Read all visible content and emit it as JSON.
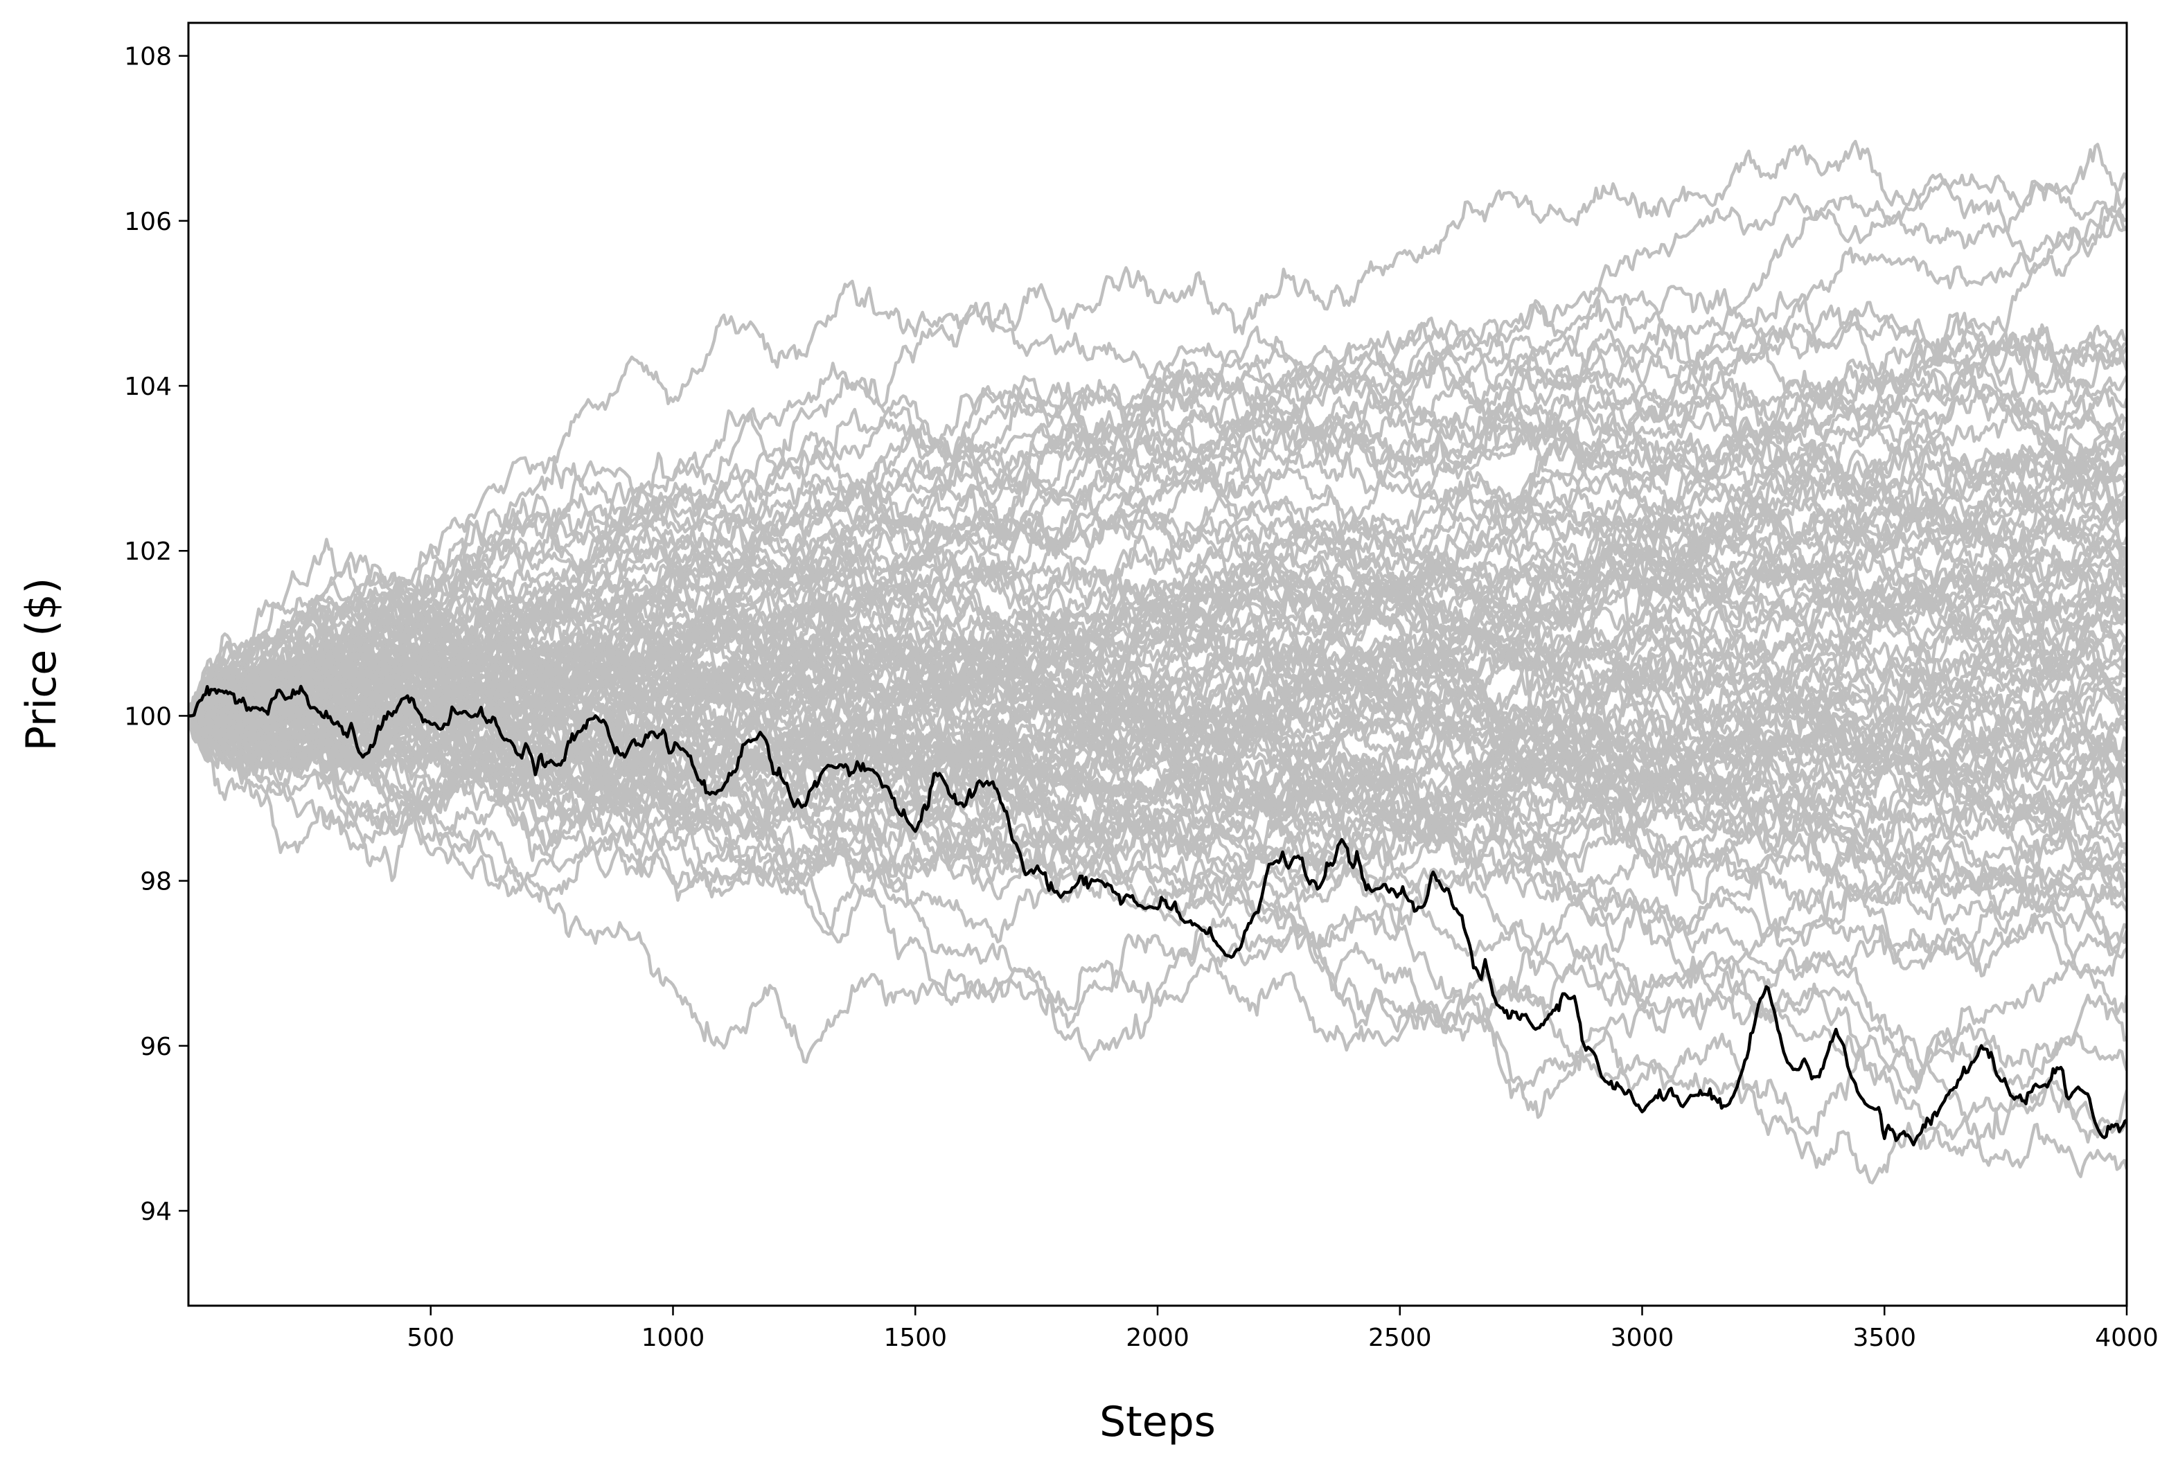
{
  "chart_data": {
    "type": "line",
    "title": "",
    "xlabel": "Steps",
    "ylabel": "Price ($)",
    "xlim": [
      0,
      4000
    ],
    "ylim": [
      92.85,
      108.4
    ],
    "x_ticks": [
      500,
      1000,
      1500,
      2000,
      2500,
      3000,
      3500,
      4000
    ],
    "y_ticks": [
      94,
      96,
      98,
      100,
      102,
      104,
      106,
      108
    ],
    "grid": false,
    "legend": "none",
    "background_paths": {
      "color": "#bfbfbf",
      "count": 100,
      "start_value": 100,
      "steps": 4000,
      "end_range": [
        93.3,
        108.1
      ]
    },
    "highlight_series": {
      "color": "#000000",
      "points": [
        [
          0,
          100.0
        ],
        [
          70,
          100.3
        ],
        [
          140,
          100.1
        ],
        [
          200,
          100.2
        ],
        [
          260,
          100.1
        ],
        [
          300,
          99.9
        ],
        [
          360,
          99.5
        ],
        [
          440,
          100.2
        ],
        [
          500,
          99.9
        ],
        [
          580,
          100.0
        ],
        [
          660,
          99.7
        ],
        [
          760,
          99.4
        ],
        [
          840,
          100.0
        ],
        [
          900,
          99.5
        ],
        [
          960,
          99.8
        ],
        [
          1020,
          99.6
        ],
        [
          1100,
          99.1
        ],
        [
          1180,
          99.8
        ],
        [
          1250,
          98.9
        ],
        [
          1320,
          99.4
        ],
        [
          1420,
          99.3
        ],
        [
          1500,
          98.6
        ],
        [
          1550,
          99.3
        ],
        [
          1600,
          98.9
        ],
        [
          1660,
          99.2
        ],
        [
          1700,
          98.5
        ],
        [
          1760,
          98.1
        ],
        [
          1800,
          97.8
        ],
        [
          1880,
          98.0
        ],
        [
          1960,
          97.7
        ],
        [
          2060,
          97.5
        ],
        [
          2140,
          97.1
        ],
        [
          2200,
          97.6
        ],
        [
          2230,
          98.2
        ],
        [
          2290,
          98.3
        ],
        [
          2330,
          97.9
        ],
        [
          2380,
          98.5
        ],
        [
          2450,
          97.9
        ],
        [
          2550,
          97.7
        ],
        [
          2580,
          98.0
        ],
        [
          2640,
          97.3
        ],
        [
          2700,
          96.5
        ],
        [
          2780,
          96.2
        ],
        [
          2860,
          96.6
        ],
        [
          2920,
          95.6
        ],
        [
          3000,
          95.2
        ],
        [
          3100,
          95.4
        ],
        [
          3180,
          95.3
        ],
        [
          3240,
          96.5
        ],
        [
          3260,
          96.7
        ],
        [
          3300,
          95.8
        ],
        [
          3350,
          95.6
        ],
        [
          3400,
          96.2
        ],
        [
          3460,
          95.3
        ],
        [
          3560,
          94.8
        ],
        [
          3620,
          95.3
        ],
        [
          3700,
          96.0
        ],
        [
          3760,
          95.4
        ],
        [
          3820,
          95.5
        ],
        [
          3900,
          95.5
        ],
        [
          3950,
          94.9
        ],
        [
          4000,
          95.1
        ]
      ]
    }
  }
}
